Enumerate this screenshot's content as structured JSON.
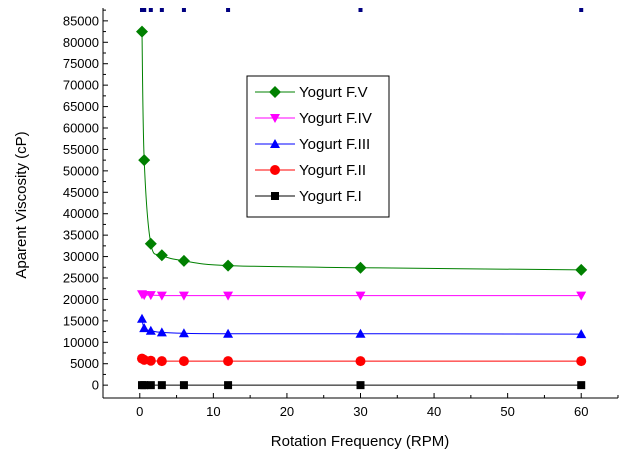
{
  "chart_data": {
    "type": "line",
    "title": "",
    "xlabel": "Rotation Frequency (RPM)",
    "ylabel": "Aparent Viscosity (cP)",
    "xlim": [
      -5,
      65
    ],
    "ylim": [
      -3000,
      88000
    ],
    "x_ticks": [
      0,
      10,
      20,
      30,
      40,
      50,
      60
    ],
    "y_ticks": [
      0,
      5000,
      10000,
      15000,
      20000,
      25000,
      30000,
      35000,
      40000,
      45000,
      50000,
      55000,
      60000,
      65000,
      70000,
      75000,
      80000,
      85000
    ],
    "legend_position": "center",
    "series": [
      {
        "name": "Yogurt F.V",
        "color": "#008000",
        "marker": "diamond",
        "x": [
          0.3,
          0.6,
          1.5,
          3,
          6,
          12,
          30,
          60
        ],
        "y": [
          82500,
          52500,
          33000,
          30300,
          29000,
          27900,
          27400,
          26900
        ]
      },
      {
        "name": "Yogurt F.IV",
        "color": "#ff00ff",
        "marker": "triangle-down",
        "x": [
          0.3,
          0.6,
          1.5,
          3,
          6,
          12,
          30,
          60
        ],
        "y": [
          21200,
          21000,
          21000,
          20900,
          20900,
          20900,
          20900,
          20900
        ]
      },
      {
        "name": "Yogurt F.III",
        "color": "#0000ff",
        "marker": "triangle-up",
        "x": [
          0.3,
          0.6,
          1.5,
          3,
          6,
          12,
          30,
          60
        ],
        "y": [
          15500,
          13300,
          12700,
          12300,
          12100,
          12000,
          12000,
          11900
        ]
      },
      {
        "name": "Yogurt F.II",
        "color": "#ff0000",
        "marker": "circle",
        "x": [
          0.3,
          0.6,
          1.5,
          3,
          6,
          12,
          30,
          60
        ],
        "y": [
          6200,
          5900,
          5700,
          5600,
          5600,
          5600,
          5600,
          5600
        ]
      },
      {
        "name": "Yogurt F.I",
        "color": "#000000",
        "marker": "square",
        "x": [
          0.3,
          0.6,
          1.5,
          3,
          6,
          12,
          30,
          60
        ],
        "y": [
          0,
          0,
          0,
          0,
          0,
          0,
          0,
          0
        ]
      }
    ]
  }
}
